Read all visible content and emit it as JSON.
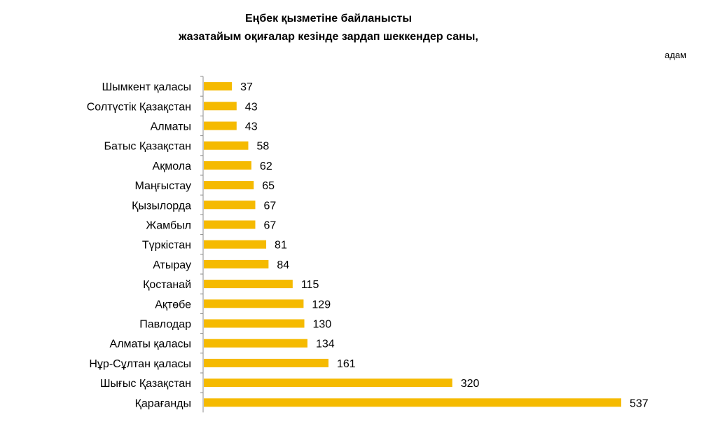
{
  "chart_data": {
    "type": "bar",
    "orientation": "horizontal",
    "title": [
      "Еңбек қызметіне байланысты",
      "жазатайым оқиғалар кезінде зардап шеккендер саны,"
    ],
    "unit": "адам",
    "categories": [
      "Шымкент қаласы",
      "Солтүстік Қазақстан",
      "Алматы",
      "Батыс Қазақстан",
      "Ақмола",
      "Маңғыстау",
      "Қызылорда",
      "Жамбыл",
      "Түркістан",
      "Атырау",
      "Қостанай",
      "Ақтөбе",
      "Павлодар",
      "Алматы қаласы",
      "Нұр-Сұлтан қаласы",
      "Шығыс  Қазақстан",
      "Қарағанды"
    ],
    "values": [
      37,
      43,
      43,
      58,
      62,
      65,
      67,
      67,
      81,
      84,
      115,
      129,
      130,
      134,
      161,
      320,
      537
    ],
    "xlim": [
      0,
      537
    ],
    "grid": false,
    "legend": "none",
    "bar_color": "#F5BA00",
    "axis_color": "#8C8C8C"
  }
}
